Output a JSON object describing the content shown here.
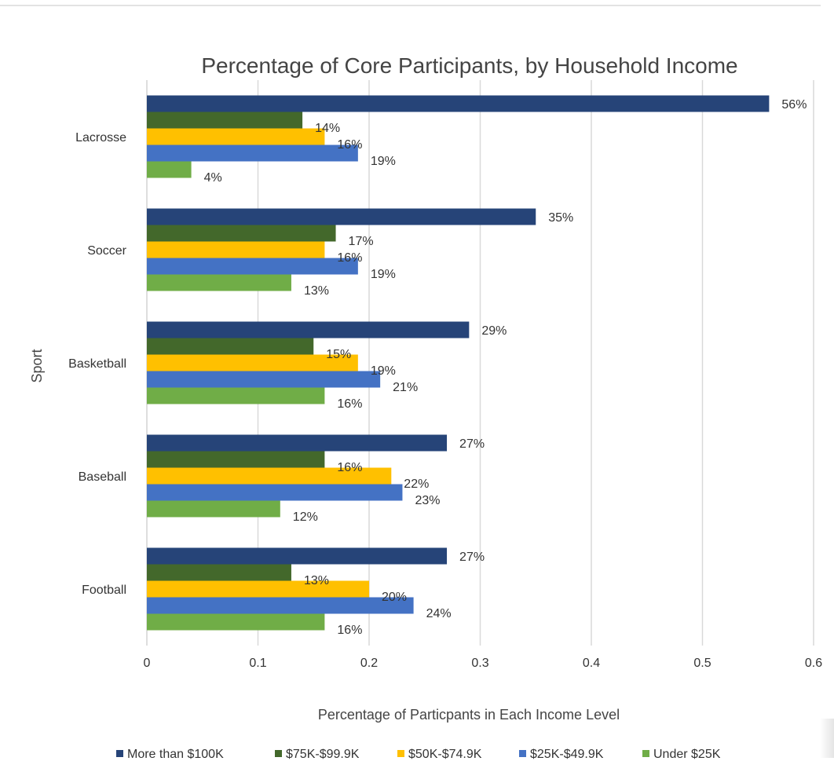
{
  "chart_data": {
    "type": "bar",
    "orientation": "horizontal",
    "title": "Percentage of Core Participants, by Household Income",
    "xlabel": "Percentage of Particpants in Each Income Level",
    "ylabel": "Sport",
    "categories": [
      "Lacrosse",
      "Soccer",
      "Basketball",
      "Baseball",
      "Football"
    ],
    "xlim": [
      0,
      0.6
    ],
    "xticks": [
      0,
      0.1,
      0.2,
      0.3,
      0.4,
      0.5,
      0.6
    ],
    "xtick_labels": [
      "0",
      "0.1",
      "0.2",
      "0.3",
      "0.4",
      "0.5",
      "0.6"
    ],
    "grid": true,
    "legend_position": "bottom",
    "series": [
      {
        "name": "More than $100K",
        "color": "#264478",
        "values": [
          0.56,
          0.35,
          0.29,
          0.27,
          0.27
        ],
        "labels": [
          "56%",
          "35%",
          "29%",
          "27%",
          "27%"
        ]
      },
      {
        "name": "$75K-$99.9K",
        "color": "#43682b",
        "values": [
          0.14,
          0.17,
          0.15,
          0.16,
          0.13
        ],
        "labels": [
          "14%",
          "17%",
          "15%",
          "16%",
          "13%"
        ]
      },
      {
        "name": "$50K-$74.9K",
        "color": "#ffc000",
        "values": [
          0.16,
          0.16,
          0.19,
          0.22,
          0.2
        ],
        "labels": [
          "16%",
          "16%",
          "19%",
          "22%",
          "20%"
        ]
      },
      {
        "name": "$25K-$49.9K",
        "color": "#4472c4",
        "values": [
          0.19,
          0.19,
          0.21,
          0.23,
          0.24
        ],
        "labels": [
          "19%",
          "19%",
          "21%",
          "23%",
          "24%"
        ]
      },
      {
        "name": "Under $25K",
        "color": "#70ad47",
        "values": [
          0.04,
          0.13,
          0.16,
          0.12,
          0.16
        ],
        "labels": [
          "4%",
          "13%",
          "16%",
          "12%",
          "16%"
        ]
      }
    ]
  }
}
